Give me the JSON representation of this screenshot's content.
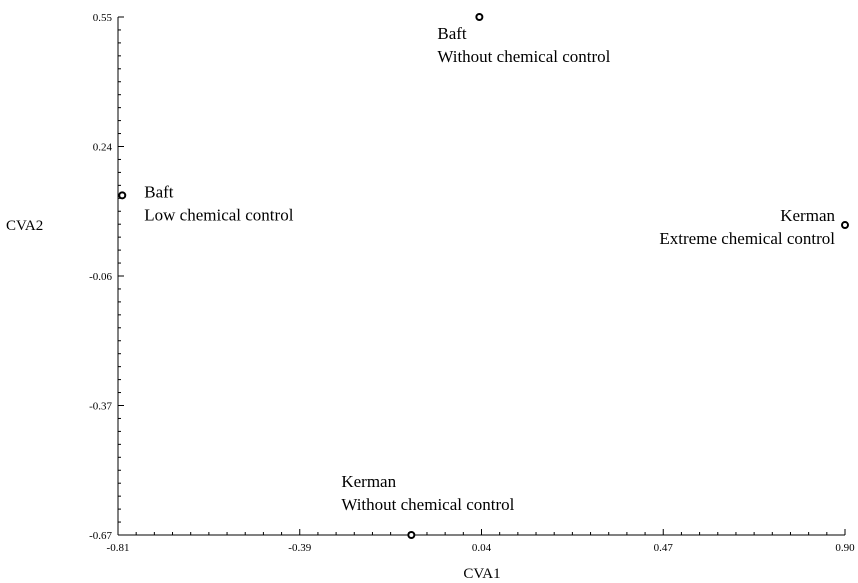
{
  "chart_data": {
    "type": "scatter",
    "title": "",
    "xlabel": "CVA1",
    "ylabel": "CVA2",
    "xlim": [
      -0.81,
      0.9
    ],
    "ylim": [
      -0.67,
      0.55
    ],
    "x_ticks": [
      "-0.81",
      "-0.39",
      "0.04",
      "0.47",
      "0.90"
    ],
    "y_ticks": [
      "0.55",
      "0.24",
      "-0.06",
      "-0.37",
      "-0.67"
    ],
    "grid": false,
    "legend": "none",
    "points": [
      {
        "x": 0.04,
        "y": 0.55,
        "label_line1": "Baft",
        "label_line2": "Without chemical control"
      },
      {
        "x": -0.8,
        "y": 0.13,
        "label_line1": "Baft",
        "label_line2": "Low chemical control"
      },
      {
        "x": 0.9,
        "y": 0.06,
        "label_line1": "Kerman",
        "label_line2": "Extreme chemical control"
      },
      {
        "x": -0.12,
        "y": -0.67,
        "label_line1": "Kerman",
        "label_line2": "Without chemical control"
      }
    ]
  }
}
